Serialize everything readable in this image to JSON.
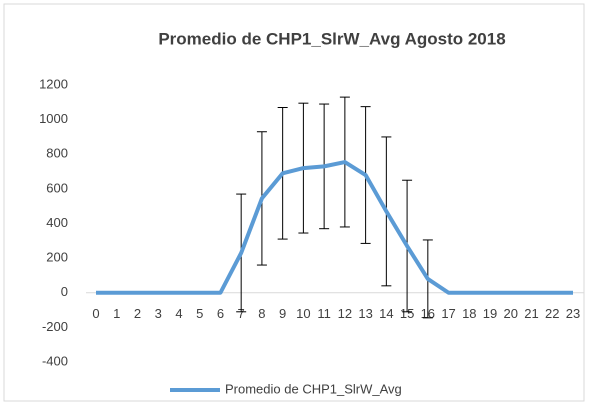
{
  "chart_data": {
    "type": "line",
    "title": "Promedio de CHP1_SlrW_Avg Agosto 2018",
    "categories": [
      "0",
      "1",
      "2",
      "3",
      "4",
      "5",
      "6",
      "7",
      "8",
      "9",
      "10",
      "11",
      "12",
      "13",
      "14",
      "15",
      "16",
      "17",
      "18",
      "19",
      "20",
      "21",
      "22",
      "23"
    ],
    "series": [
      {
        "name": "Promedio de CHP1_SlrW_Avg",
        "color": "#5b9bd5",
        "values": [
          0,
          0,
          0,
          0,
          0,
          0,
          0,
          230,
          545,
          690,
          720,
          730,
          755,
          680,
          470,
          270,
          80,
          0,
          0,
          0,
          0,
          0,
          0,
          0
        ],
        "errors": [
          0,
          0,
          0,
          0,
          0,
          0,
          0,
          340,
          385,
          380,
          375,
          360,
          375,
          395,
          430,
          380,
          225,
          0,
          0,
          0,
          0,
          0,
          0,
          0
        ]
      }
    ],
    "ylim": [
      -400,
      1200
    ],
    "yticks": [
      -400,
      -200,
      0,
      200,
      400,
      600,
      800,
      1000,
      1200
    ],
    "legend": "bottom"
  }
}
